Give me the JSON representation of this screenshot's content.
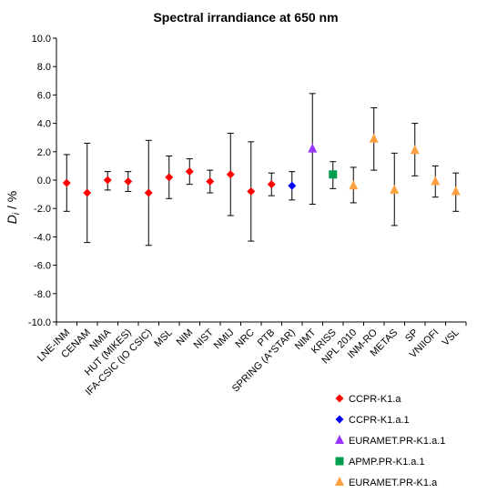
{
  "chart_data": {
    "type": "scatter",
    "title": "Spectral irrandiance at 650 nm",
    "ylabel_main": "D",
    "ylabel_sub": "i",
    "ylabel_unit": " / %",
    "ylim": [
      -10,
      10
    ],
    "yticks": [
      "10.0",
      "8.0",
      "6.0",
      "4.0",
      "2.0",
      "0.0",
      "-2.0",
      "-4.0",
      "-6.0",
      "-8.0",
      "-10.0"
    ],
    "grid": "none",
    "legend_position": "bottom-right",
    "series": [
      {
        "name": "CCPR-K1.a",
        "color": "#ff0000",
        "marker": "diamond"
      },
      {
        "name": "CCPR-K1.a.1",
        "color": "#0000ff",
        "marker": "diamond"
      },
      {
        "name": "EURAMET.PR-K1.a.1",
        "color": "#9933ff",
        "marker": "triangle"
      },
      {
        "name": "APMP.PR-K1.a.1",
        "color": "#00a050",
        "marker": "square"
      },
      {
        "name": "EURAMET.PR-K1.a",
        "color": "#ffa040",
        "marker": "triangle"
      }
    ],
    "points": [
      {
        "label": "LNE-INM",
        "series": 0,
        "y": -0.2,
        "lo": -2.2,
        "hi": 1.8
      },
      {
        "label": "CENAM",
        "series": 0,
        "y": -0.9,
        "lo": -4.4,
        "hi": 2.6
      },
      {
        "label": "NMIA",
        "series": 0,
        "y": 0.0,
        "lo": -0.7,
        "hi": 0.6
      },
      {
        "label": "HUT (MIKES)",
        "series": 0,
        "y": -0.1,
        "lo": -0.8,
        "hi": 0.6
      },
      {
        "label": "IFA-CSIC (IO CSIC)",
        "series": 0,
        "y": -0.9,
        "lo": -4.6,
        "hi": 2.8
      },
      {
        "label": "MSL",
        "series": 0,
        "y": 0.2,
        "lo": -1.3,
        "hi": 1.7
      },
      {
        "label": "NIM",
        "series": 0,
        "y": 0.6,
        "lo": -0.3,
        "hi": 1.5
      },
      {
        "label": "NIST",
        "series": 0,
        "y": -0.1,
        "lo": -0.9,
        "hi": 0.7
      },
      {
        "label": "NMIJ",
        "series": 0,
        "y": 0.4,
        "lo": -2.5,
        "hi": 3.3
      },
      {
        "label": "NRC",
        "series": 0,
        "y": -0.8,
        "lo": -4.3,
        "hi": 2.7
      },
      {
        "label": "PTB",
        "series": 0,
        "y": -0.3,
        "lo": -1.1,
        "hi": 0.5
      },
      {
        "label": "SPRING (A*STAR)",
        "series": 1,
        "y": -0.4,
        "lo": -1.4,
        "hi": 0.6
      },
      {
        "label": "NIMT",
        "series": 2,
        "y": 2.2,
        "lo": -1.7,
        "hi": 6.1
      },
      {
        "label": "KRISS",
        "series": 3,
        "y": 0.4,
        "lo": -0.6,
        "hi": 1.3
      },
      {
        "label": "NPL 2010",
        "series": 4,
        "y": -0.4,
        "lo": -1.6,
        "hi": 0.9
      },
      {
        "label": "INM-RO",
        "series": 4,
        "y": 2.9,
        "lo": 0.7,
        "hi": 5.1
      },
      {
        "label": "METAS",
        "series": 4,
        "y": -0.7,
        "lo": -3.2,
        "hi": 1.9
      },
      {
        "label": "SP",
        "series": 4,
        "y": 2.1,
        "lo": 0.3,
        "hi": 4.0
      },
      {
        "label": "VNIIOFI",
        "series": 4,
        "y": -0.1,
        "lo": -1.2,
        "hi": 1.0
      },
      {
        "label": "VSL",
        "series": 4,
        "y": -0.8,
        "lo": -2.2,
        "hi": 0.5
      }
    ]
  }
}
